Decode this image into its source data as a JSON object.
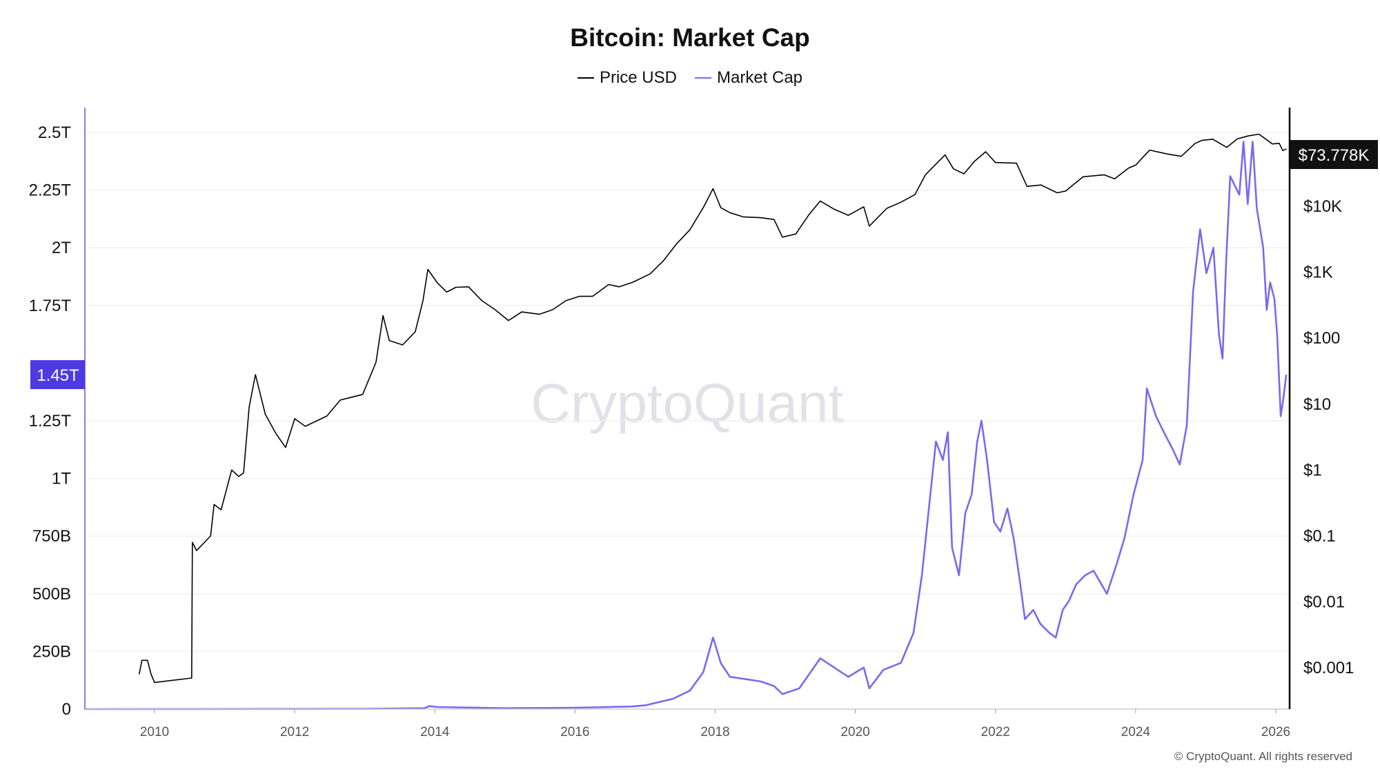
{
  "chart_data": {
    "type": "line",
    "title": "Bitcoin: Market Cap",
    "legend": [
      {
        "name": "Price USD",
        "color": "#000000"
      },
      {
        "name": "Market Cap",
        "color": "#7b68ee"
      }
    ],
    "legend_position": "top-center",
    "x_ticks": [
      "2010",
      "2012",
      "2014",
      "2016",
      "2018",
      "2020",
      "2022",
      "2024",
      "2026"
    ],
    "xlim": [
      2009.0,
      2026.25
    ],
    "left_axis": {
      "label": "Market Cap",
      "ylim_T": [
        0,
        2.6
      ],
      "ticks": [
        {
          "v": 0,
          "label": "0"
        },
        {
          "v": 0.25,
          "label": "250B"
        },
        {
          "v": 0.5,
          "label": "500B"
        },
        {
          "v": 0.75,
          "label": "750B"
        },
        {
          "v": 1,
          "label": "1T"
        },
        {
          "v": 1.25,
          "label": "1.25T"
        },
        {
          "v": 1.75,
          "label": "1.75T"
        },
        {
          "v": 2,
          "label": "2T"
        },
        {
          "v": 2.25,
          "label": "2.25T"
        },
        {
          "v": 2.5,
          "label": "2.5T"
        }
      ],
      "current_label": "1.45T",
      "current_value": 1.45,
      "color": "#4b3be0"
    },
    "right_axis": {
      "label": "Price USD",
      "scale": "log",
      "ticks": [
        {
          "v": 0.001,
          "label": "$0.001"
        },
        {
          "v": 0.01,
          "label": "$0.01"
        },
        {
          "v": 0.1,
          "label": "$0.1"
        },
        {
          "v": 1,
          "label": "$1"
        },
        {
          "v": 10,
          "label": "$10"
        },
        {
          "v": 100,
          "label": "$100"
        },
        {
          "v": 1000,
          "label": "$1K"
        },
        {
          "v": 10000,
          "label": "$10K"
        }
      ],
      "current_label": "$73.778K",
      "current_value": 73778
    },
    "grid": true,
    "series": [
      {
        "name": "Price USD",
        "axis": "right",
        "color": "#000000",
        "points": [
          [
            2009.78,
            0.0008
          ],
          [
            2009.82,
            0.0013
          ],
          [
            2009.9,
            0.0013
          ],
          [
            2009.95,
            0.0008
          ],
          [
            2010.0,
            0.0006
          ],
          [
            2010.53,
            0.0007
          ],
          [
            2010.54,
            0.08
          ],
          [
            2010.6,
            0.06
          ],
          [
            2010.8,
            0.1
          ],
          [
            2010.85,
            0.3
          ],
          [
            2010.95,
            0.25
          ],
          [
            2011.1,
            1.0
          ],
          [
            2011.2,
            0.8
          ],
          [
            2011.27,
            0.9
          ],
          [
            2011.35,
            9
          ],
          [
            2011.44,
            28
          ],
          [
            2011.58,
            7
          ],
          [
            2011.73,
            3.6
          ],
          [
            2011.87,
            2.2
          ],
          [
            2012.0,
            6
          ],
          [
            2012.15,
            4.6
          ],
          [
            2012.46,
            6.6
          ],
          [
            2012.65,
            11.5
          ],
          [
            2012.97,
            14
          ],
          [
            2013.16,
            43
          ],
          [
            2013.26,
            220
          ],
          [
            2013.35,
            92
          ],
          [
            2013.54,
            79
          ],
          [
            2013.72,
            125
          ],
          [
            2013.83,
            370
          ],
          [
            2013.9,
            1100
          ],
          [
            2014.04,
            680
          ],
          [
            2014.17,
            500
          ],
          [
            2014.3,
            590
          ],
          [
            2014.48,
            600
          ],
          [
            2014.67,
            370
          ],
          [
            2014.86,
            270
          ],
          [
            2015.05,
            185
          ],
          [
            2015.24,
            250
          ],
          [
            2015.49,
            230
          ],
          [
            2015.68,
            270
          ],
          [
            2015.87,
            370
          ],
          [
            2016.06,
            430
          ],
          [
            2016.25,
            430
          ],
          [
            2016.48,
            650
          ],
          [
            2016.63,
            600
          ],
          [
            2016.82,
            700
          ],
          [
            2017.07,
            940
          ],
          [
            2017.26,
            1480
          ],
          [
            2017.45,
            2700
          ],
          [
            2017.64,
            4400
          ],
          [
            2017.83,
            9500
          ],
          [
            2017.97,
            18500
          ],
          [
            2018.08,
            9500
          ],
          [
            2018.21,
            8000
          ],
          [
            2018.4,
            6900
          ],
          [
            2018.65,
            6700
          ],
          [
            2018.84,
            6300
          ],
          [
            2018.96,
            3400
          ],
          [
            2019.15,
            3800
          ],
          [
            2019.34,
            7500
          ],
          [
            2019.5,
            12000
          ],
          [
            2019.7,
            9000
          ],
          [
            2019.9,
            7300
          ],
          [
            2020.12,
            9800
          ],
          [
            2020.2,
            5000
          ],
          [
            2020.45,
            9300
          ],
          [
            2020.65,
            11500
          ],
          [
            2020.85,
            15000
          ],
          [
            2021.0,
            30000
          ],
          [
            2021.28,
            60000
          ],
          [
            2021.4,
            37000
          ],
          [
            2021.55,
            31000
          ],
          [
            2021.7,
            48000
          ],
          [
            2021.86,
            67000
          ],
          [
            2022.0,
            46000
          ],
          [
            2022.3,
            45000
          ],
          [
            2022.45,
            20000
          ],
          [
            2022.65,
            21000
          ],
          [
            2022.88,
            16000
          ],
          [
            2023.0,
            17000
          ],
          [
            2023.25,
            28000
          ],
          [
            2023.55,
            30000
          ],
          [
            2023.7,
            26000
          ],
          [
            2023.9,
            38000
          ],
          [
            2024.0,
            42000
          ],
          [
            2024.2,
            71000
          ],
          [
            2024.45,
            62000
          ],
          [
            2024.65,
            57000
          ],
          [
            2024.85,
            90000
          ],
          [
            2024.95,
            100000
          ],
          [
            2025.1,
            104000
          ],
          [
            2025.3,
            78000
          ],
          [
            2025.45,
            105000
          ],
          [
            2025.6,
            116000
          ],
          [
            2025.76,
            124000
          ],
          [
            2025.86,
            104000
          ],
          [
            2025.95,
            88000
          ],
          [
            2026.05,
            90000
          ],
          [
            2026.1,
            70000
          ],
          [
            2026.15,
            73778
          ]
        ]
      },
      {
        "name": "Market Cap",
        "axis": "left",
        "unit": "T",
        "color": "#7b68ee",
        "points": [
          [
            2009.0,
            0
          ],
          [
            2013.0,
            0.001
          ],
          [
            2013.85,
            0.004
          ],
          [
            2013.92,
            0.013
          ],
          [
            2014.04,
            0.009
          ],
          [
            2015.0,
            0.004
          ],
          [
            2016.0,
            0.006
          ],
          [
            2016.8,
            0.011
          ],
          [
            2017.0,
            0.016
          ],
          [
            2017.4,
            0.045
          ],
          [
            2017.64,
            0.08
          ],
          [
            2017.83,
            0.16
          ],
          [
            2017.97,
            0.31
          ],
          [
            2018.08,
            0.2
          ],
          [
            2018.21,
            0.14
          ],
          [
            2018.65,
            0.12
          ],
          [
            2018.84,
            0.1
          ],
          [
            2018.96,
            0.065
          ],
          [
            2019.2,
            0.09
          ],
          [
            2019.5,
            0.22
          ],
          [
            2019.9,
            0.14
          ],
          [
            2020.12,
            0.18
          ],
          [
            2020.2,
            0.09
          ],
          [
            2020.4,
            0.17
          ],
          [
            2020.65,
            0.2
          ],
          [
            2020.83,
            0.33
          ],
          [
            2020.95,
            0.58
          ],
          [
            2021.07,
            0.93
          ],
          [
            2021.15,
            1.16
          ],
          [
            2021.25,
            1.08
          ],
          [
            2021.32,
            1.2
          ],
          [
            2021.38,
            0.7
          ],
          [
            2021.48,
            0.58
          ],
          [
            2021.57,
            0.85
          ],
          [
            2021.66,
            0.93
          ],
          [
            2021.74,
            1.16
          ],
          [
            2021.8,
            1.25
          ],
          [
            2021.88,
            1.08
          ],
          [
            2021.98,
            0.81
          ],
          [
            2022.07,
            0.77
          ],
          [
            2022.17,
            0.87
          ],
          [
            2022.26,
            0.74
          ],
          [
            2022.35,
            0.55
          ],
          [
            2022.42,
            0.39
          ],
          [
            2022.54,
            0.43
          ],
          [
            2022.64,
            0.37
          ],
          [
            2022.77,
            0.33
          ],
          [
            2022.86,
            0.31
          ],
          [
            2022.96,
            0.43
          ],
          [
            2023.05,
            0.47
          ],
          [
            2023.15,
            0.54
          ],
          [
            2023.28,
            0.58
          ],
          [
            2023.4,
            0.6
          ],
          [
            2023.59,
            0.5
          ],
          [
            2023.72,
            0.62
          ],
          [
            2023.84,
            0.74
          ],
          [
            2023.97,
            0.93
          ],
          [
            2024.1,
            1.08
          ],
          [
            2024.16,
            1.39
          ],
          [
            2024.29,
            1.27
          ],
          [
            2024.42,
            1.19
          ],
          [
            2024.54,
            1.12
          ],
          [
            2024.63,
            1.06
          ],
          [
            2024.73,
            1.23
          ],
          [
            2024.82,
            1.81
          ],
          [
            2024.92,
            2.08
          ],
          [
            2025.01,
            1.89
          ],
          [
            2025.11,
            2.0
          ],
          [
            2025.19,
            1.62
          ],
          [
            2025.24,
            1.52
          ],
          [
            2025.29,
            1.93
          ],
          [
            2025.35,
            2.31
          ],
          [
            2025.48,
            2.23
          ],
          [
            2025.54,
            2.46
          ],
          [
            2025.6,
            2.19
          ],
          [
            2025.67,
            2.46
          ],
          [
            2025.73,
            2.17
          ],
          [
            2025.82,
            2.0
          ],
          [
            2025.87,
            1.73
          ],
          [
            2025.92,
            1.85
          ],
          [
            2025.98,
            1.78
          ],
          [
            2026.02,
            1.62
          ],
          [
            2026.07,
            1.27
          ],
          [
            2026.11,
            1.35
          ],
          [
            2026.15,
            1.45
          ]
        ]
      }
    ],
    "watermark": "CryptoQuant"
  },
  "footer": {
    "copyright": "© CryptoQuant. All rights reserved"
  }
}
